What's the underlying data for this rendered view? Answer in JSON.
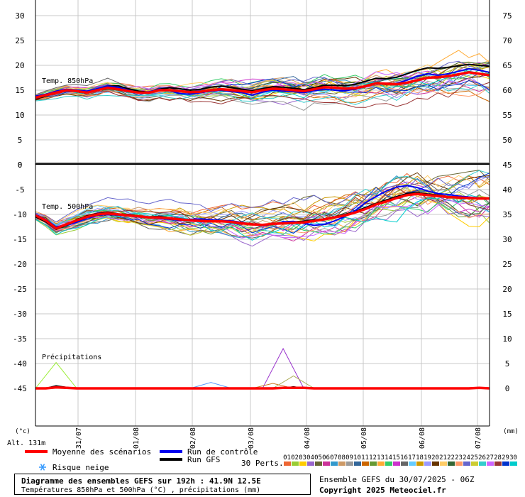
{
  "chart_data": {
    "type": "line",
    "title": "Diagramme des ensembles GEFS sur 192h : 41.9N 12.5E",
    "subtitle": "Températures 850hPa et 500hPa (°C) , précipitations (mm)",
    "altitude": "Alt. 131m",
    "left_unit": "(°c)",
    "right_unit": "(mm)",
    "x_labels": [
      "31/07",
      "01/08",
      "02/08",
      "03/08",
      "04/08",
      "05/08",
      "06/08",
      "07/08"
    ],
    "panels": [
      {
        "name": "Temp. 850hPa",
        "left_ticks": [
          "30",
          "25",
          "20",
          "15",
          "10",
          "5",
          "0"
        ],
        "right_ticks": [
          "75",
          "70",
          "65",
          "60",
          "55",
          "50"
        ],
        "ylim": [
          0,
          30
        ],
        "mean": [
          13.5,
          14.0,
          14.5,
          15.0,
          14.8,
          14.5,
          15.0,
          15.5,
          15.2,
          14.8,
          14.5,
          14.5,
          15.0,
          15.0,
          14.8,
          14.6,
          14.7,
          15.0,
          15.2,
          15.0,
          14.8,
          14.6,
          15.0,
          15.3,
          15.2,
          15.0,
          14.8,
          15.2,
          15.6,
          15.5,
          15.3,
          15.4,
          15.8,
          16.4,
          16.3,
          16.2,
          16.5,
          17.0,
          17.5,
          17.6,
          17.8,
          18.2,
          18.6,
          18.3,
          18.0
        ],
        "control": [
          13.8,
          14.2,
          14.8,
          15.2,
          15.0,
          14.8,
          15.3,
          15.8,
          15.6,
          15.0,
          14.5,
          14.7,
          15.2,
          14.9,
          14.3,
          14.2,
          14.5,
          14.8,
          15.0,
          14.7,
          14.5,
          14.0,
          14.6,
          15.0,
          14.8,
          14.7,
          14.5,
          14.9,
          15.2,
          15.0,
          14.9,
          15.2,
          15.7,
          16.5,
          16.2,
          16.4,
          17.0,
          17.8,
          18.3,
          18.0,
          18.3,
          18.8,
          19.3,
          19.0,
          18.6
        ],
        "gfs": [
          13.2,
          13.8,
          14.6,
          15.1,
          14.7,
          14.4,
          15.0,
          15.8,
          15.9,
          15.3,
          14.8,
          14.6,
          15.2,
          15.5,
          15.3,
          15.0,
          15.2,
          15.6,
          15.8,
          15.5,
          15.2,
          14.9,
          15.3,
          15.7,
          15.6,
          15.4,
          15.1,
          15.5,
          16.0,
          16.0,
          15.9,
          16.2,
          16.8,
          17.4,
          17.3,
          17.6,
          18.3,
          19.0,
          19.5,
          19.4,
          19.6,
          19.9,
          20.2,
          20.0,
          19.8
        ],
        "spread": 3.4
      },
      {
        "name": "Temp. 500hPa",
        "left_ticks": [
          "0",
          "-5",
          "-10",
          "-15",
          "-20",
          "-25",
          "-30",
          "-35",
          "-40",
          "-45"
        ],
        "right_ticks": [
          "45",
          "40",
          "35",
          "30",
          "25",
          "20",
          "15",
          "10",
          "5",
          "0"
        ],
        "ylim": [
          -45,
          0
        ],
        "mean": [
          -10.2,
          -11.2,
          -12.8,
          -12.0,
          -11.2,
          -10.5,
          -10.0,
          -9.8,
          -10.0,
          -10.2,
          -10.4,
          -10.6,
          -10.6,
          -10.8,
          -11.0,
          -11.2,
          -11.3,
          -11.4,
          -11.4,
          -11.5,
          -11.8,
          -12.0,
          -12.1,
          -11.9,
          -11.8,
          -11.7,
          -11.6,
          -11.3,
          -11.0,
          -10.6,
          -10.2,
          -9.6,
          -8.9,
          -8.0,
          -7.4,
          -6.7,
          -6.1,
          -5.9,
          -6.1,
          -6.3,
          -6.5,
          -6.6,
          -6.7,
          -6.8,
          -6.8
        ],
        "control": [
          -10.0,
          -11.0,
          -12.5,
          -12.1,
          -11.5,
          -10.7,
          -10.2,
          -10.0,
          -10.1,
          -10.3,
          -10.5,
          -10.7,
          -10.8,
          -11.0,
          -11.2,
          -11.0,
          -10.9,
          -11.1,
          -11.2,
          -11.3,
          -11.6,
          -12.0,
          -12.3,
          -12.0,
          -11.5,
          -11.4,
          -11.8,
          -12.2,
          -12.0,
          -11.3,
          -10.4,
          -9.2,
          -7.6,
          -6.4,
          -5.3,
          -4.5,
          -4.2,
          -4.6,
          -5.3,
          -5.8,
          -6.0,
          -6.3,
          -6.5,
          -6.7,
          -6.9
        ],
        "gfs": [
          -10.5,
          -11.5,
          -13.0,
          -12.2,
          -11.0,
          -10.3,
          -9.8,
          -9.6,
          -9.9,
          -10.0,
          -10.3,
          -10.5,
          -10.4,
          -10.7,
          -10.9,
          -11.1,
          -11.2,
          -11.3,
          -11.3,
          -11.4,
          -11.7,
          -12.0,
          -12.2,
          -11.9,
          -11.6,
          -11.5,
          -11.4,
          -11.1,
          -10.9,
          -10.5,
          -10.0,
          -9.4,
          -8.6,
          -7.8,
          -7.1,
          -6.4,
          -5.8,
          -5.6,
          -5.9,
          -6.1,
          -6.4,
          -6.5,
          -6.6,
          -6.7,
          -6.7
        ],
        "spread": 5.0
      },
      {
        "name": "Précipitations",
        "ylim": [
          0,
          45
        ],
        "mean": [
          0,
          0,
          0.2,
          0.1,
          0,
          0,
          0,
          0,
          0,
          0,
          0,
          0,
          0,
          0,
          0,
          0,
          0,
          0,
          0,
          0,
          0,
          0,
          0,
          0,
          0.1,
          0.1,
          0.1,
          0,
          0,
          0,
          0,
          0,
          0,
          0,
          0,
          0,
          0,
          0,
          0,
          0,
          0,
          0,
          0,
          0.1,
          0
        ],
        "control": [
          0,
          0,
          0.3,
          0,
          0,
          0,
          0,
          0,
          0,
          0,
          0,
          0,
          0,
          0,
          0,
          0,
          0,
          0,
          0,
          0,
          0,
          0,
          0,
          0,
          0,
          0,
          0,
          0,
          0,
          0,
          0,
          0,
          0,
          0,
          0,
          0,
          0,
          0,
          0,
          0,
          0,
          0,
          0,
          0,
          0
        ],
        "gfs": [
          0,
          0,
          0.5,
          0.2,
          0,
          0,
          0,
          0,
          0,
          0,
          0,
          0,
          0,
          0,
          0,
          0,
          0,
          0,
          0,
          0,
          0,
          0,
          0,
          0,
          0,
          0.3,
          0,
          0,
          0,
          0,
          0,
          0,
          0,
          0,
          0,
          0,
          0,
          0,
          0,
          0,
          0,
          0,
          0,
          0,
          0
        ],
        "spikes": [
          {
            "color": "#99ee33",
            "x": 2,
            "value": 5.2
          },
          {
            "color": "#9933cc",
            "x": 24,
            "value": 8.0
          },
          {
            "color": "#5599ff",
            "x": 17,
            "value": 1.2
          },
          {
            "color": "#cc7722",
            "x": 23,
            "value": 1.0
          },
          {
            "color": "#aaaa55",
            "x": 25,
            "value": 2.5
          }
        ]
      }
    ],
    "legend": {
      "mean": "Moyenne des scénarios",
      "control": "Run de contrôle",
      "gfs": "Run GFS",
      "snow": "Risque neige",
      "perts_label": "30 Perts."
    },
    "colors": {
      "mean": "#ff0000",
      "control": "#0000ee",
      "gfs": "#000000",
      "grid": "#c8c8c8"
    },
    "perturbations": [
      {
        "id": "01",
        "color": "#ee6633"
      },
      {
        "id": "02",
        "color": "#99cc33"
      },
      {
        "id": "03",
        "color": "#ffcc00"
      },
      {
        "id": "04",
        "color": "#9966cc"
      },
      {
        "id": "05",
        "color": "#666633"
      },
      {
        "id": "06",
        "color": "#cc3399"
      },
      {
        "id": "07",
        "color": "#3399cc"
      },
      {
        "id": "08",
        "color": "#cc9966"
      },
      {
        "id": "09",
        "color": "#999999"
      },
      {
        "id": "10",
        "color": "#336699"
      },
      {
        "id": "11",
        "color": "#cc6600"
      },
      {
        "id": "12",
        "color": "#669933"
      },
      {
        "id": "13",
        "color": "#ffaa33"
      },
      {
        "id": "14",
        "color": "#33cc66"
      },
      {
        "id": "15",
        "color": "#cc33cc"
      },
      {
        "id": "16",
        "color": "#666666"
      },
      {
        "id": "17",
        "color": "#66ccff"
      },
      {
        "id": "18",
        "color": "#cc9900"
      },
      {
        "id": "19",
        "color": "#9999ff"
      },
      {
        "id": "20",
        "color": "#663300"
      },
      {
        "id": "21",
        "color": "#ffcc66"
      },
      {
        "id": "22",
        "color": "#336633"
      },
      {
        "id": "23",
        "color": "#ff9966"
      },
      {
        "id": "24",
        "color": "#6666cc"
      },
      {
        "id": "25",
        "color": "#cccc33"
      },
      {
        "id": "26",
        "color": "#33cccc"
      },
      {
        "id": "27",
        "color": "#cc66ff"
      },
      {
        "id": "28",
        "color": "#993333"
      },
      {
        "id": "29",
        "color": "#0033cc"
      },
      {
        "id": "30",
        "color": "#00cccc"
      }
    ]
  },
  "footer": {
    "run": "Ensemble GEFS du 30/07/2025 - 06Z",
    "copyright": "Copyright 2025 Meteociel.fr"
  }
}
